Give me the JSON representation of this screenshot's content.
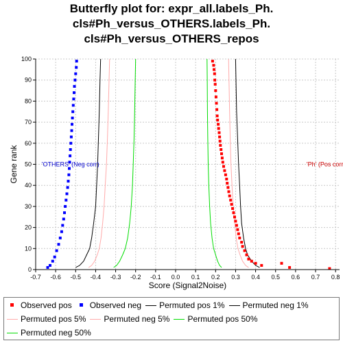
{
  "title_lines": [
    "Butterfly plot for: expr_all.labels_Ph.",
    "cls#Ph_versus_OTHERS.labels_Ph.",
    "cls#Ph_versus_OTHERS_repos"
  ],
  "chart_data": {
    "type": "scatter",
    "xlabel": "Score (Signal2Noise)",
    "ylabel": "Gene rank",
    "xlim": [
      -0.7,
      0.82
    ],
    "ylim": [
      0,
      100
    ],
    "xticks": [
      "-0.7",
      "-0.6",
      "-0.5",
      "-0.4",
      "-0.3",
      "-0.2",
      "-0.1",
      "0.0",
      "0.1",
      "0.2",
      "0.3",
      "0.4",
      "0.5",
      "0.6",
      "0.7",
      "0.8"
    ],
    "yticks": [
      "0",
      "10",
      "20",
      "30",
      "40",
      "50",
      "60",
      "70",
      "80",
      "90",
      "100"
    ],
    "grid": true,
    "annotations": [
      {
        "text": "'OTHERS' (Neg corr)",
        "x": -0.67,
        "y": 50,
        "color": "#0000cc"
      },
      {
        "text": "'Ph' (Pos corr)",
        "x": 0.655,
        "y": 50,
        "color": "#cc0000"
      }
    ],
    "series": [
      {
        "name": "Observed pos",
        "style": "points",
        "color": "#ff0000",
        "points": [
          [
            0.185,
            99
          ],
          [
            0.19,
            97
          ],
          [
            0.192,
            95
          ],
          [
            0.195,
            93
          ],
          [
            0.196,
            90
          ],
          [
            0.198,
            88
          ],
          [
            0.2,
            85
          ],
          [
            0.202,
            82
          ],
          [
            0.204,
            79
          ],
          [
            0.206,
            76
          ],
          [
            0.208,
            73
          ],
          [
            0.21,
            71
          ],
          [
            0.213,
            69
          ],
          [
            0.215,
            67
          ],
          [
            0.218,
            65
          ],
          [
            0.22,
            63
          ],
          [
            0.222,
            61
          ],
          [
            0.224,
            59
          ],
          [
            0.227,
            57
          ],
          [
            0.23,
            55
          ],
          [
            0.233,
            53
          ],
          [
            0.236,
            51
          ],
          [
            0.24,
            49
          ],
          [
            0.245,
            47
          ],
          [
            0.25,
            45
          ],
          [
            0.255,
            43
          ],
          [
            0.258,
            41
          ],
          [
            0.262,
            39
          ],
          [
            0.266,
            37
          ],
          [
            0.27,
            35
          ],
          [
            0.275,
            33
          ],
          [
            0.28,
            31
          ],
          [
            0.285,
            29
          ],
          [
            0.29,
            27
          ],
          [
            0.295,
            25
          ],
          [
            0.3,
            23
          ],
          [
            0.305,
            21
          ],
          [
            0.31,
            19
          ],
          [
            0.315,
            17
          ],
          [
            0.32,
            15
          ],
          [
            0.33,
            13
          ],
          [
            0.335,
            11
          ],
          [
            0.345,
            9
          ],
          [
            0.355,
            7
          ],
          [
            0.365,
            5
          ],
          [
            0.38,
            4
          ],
          [
            0.4,
            3
          ],
          [
            0.43,
            2
          ],
          [
            0.53,
            3
          ],
          [
            0.57,
            1
          ],
          [
            0.77,
            0.5
          ]
        ]
      },
      {
        "name": "Observed neg",
        "style": "points",
        "color": "#0000ff",
        "points": [
          [
            -0.495,
            99
          ],
          [
            -0.497,
            96
          ],
          [
            -0.5,
            93
          ],
          [
            -0.503,
            90
          ],
          [
            -0.506,
            87
          ],
          [
            -0.508,
            84
          ],
          [
            -0.51,
            81
          ],
          [
            -0.512,
            78
          ],
          [
            -0.514,
            75
          ],
          [
            -0.516,
            72
          ],
          [
            -0.518,
            69
          ],
          [
            -0.52,
            66
          ],
          [
            -0.522,
            63
          ],
          [
            -0.524,
            60
          ],
          [
            -0.526,
            57
          ],
          [
            -0.528,
            54
          ],
          [
            -0.53,
            51
          ],
          [
            -0.532,
            48
          ],
          [
            -0.534,
            45
          ],
          [
            -0.537,
            42
          ],
          [
            -0.54,
            39
          ],
          [
            -0.544,
            36
          ],
          [
            -0.548,
            33
          ],
          [
            -0.552,
            30
          ],
          [
            -0.556,
            27
          ],
          [
            -0.56,
            24
          ],
          [
            -0.565,
            21
          ],
          [
            -0.57,
            18
          ],
          [
            -0.577,
            15
          ],
          [
            -0.585,
            12
          ],
          [
            -0.595,
            9
          ],
          [
            -0.605,
            6
          ],
          [
            -0.615,
            4
          ],
          [
            -0.628,
            2
          ],
          [
            -0.64,
            1
          ]
        ]
      },
      {
        "name": "Permuted pos 1%",
        "style": "line",
        "color": "#000000",
        "points": [
          [
            0.3,
            100
          ],
          [
            0.302,
            90
          ],
          [
            0.305,
            75
          ],
          [
            0.31,
            62
          ],
          [
            0.315,
            50
          ],
          [
            0.32,
            40
          ],
          [
            0.325,
            30
          ],
          [
            0.33,
            22
          ],
          [
            0.34,
            15
          ],
          [
            0.35,
            10
          ],
          [
            0.36,
            7
          ],
          [
            0.38,
            4
          ],
          [
            0.4,
            2
          ],
          [
            0.42,
            1
          ]
        ]
      },
      {
        "name": "Permuted neg 1%",
        "style": "line",
        "color": "#000000",
        "points": [
          [
            -0.375,
            100
          ],
          [
            -0.378,
            90
          ],
          [
            -0.382,
            75
          ],
          [
            -0.386,
            62
          ],
          [
            -0.39,
            50
          ],
          [
            -0.395,
            40
          ],
          [
            -0.4,
            30
          ],
          [
            -0.41,
            22
          ],
          [
            -0.42,
            15
          ],
          [
            -0.43,
            10
          ],
          [
            -0.445,
            7
          ],
          [
            -0.46,
            4
          ],
          [
            -0.48,
            2
          ],
          [
            -0.5,
            1
          ]
        ]
      },
      {
        "name": "Permuted pos 5%",
        "style": "line",
        "color": "#ffaaaa",
        "points": [
          [
            0.265,
            100
          ],
          [
            0.267,
            90
          ],
          [
            0.27,
            75
          ],
          [
            0.273,
            62
          ],
          [
            0.277,
            50
          ],
          [
            0.282,
            40
          ],
          [
            0.288,
            30
          ],
          [
            0.295,
            22
          ],
          [
            0.303,
            15
          ],
          [
            0.312,
            10
          ],
          [
            0.322,
            7
          ],
          [
            0.335,
            4
          ],
          [
            0.35,
            2
          ],
          [
            0.365,
            1
          ]
        ]
      },
      {
        "name": "Permuted neg 5%",
        "style": "line",
        "color": "#ffaaaa",
        "points": [
          [
            -0.33,
            100
          ],
          [
            -0.333,
            90
          ],
          [
            -0.337,
            75
          ],
          [
            -0.341,
            62
          ],
          [
            -0.346,
            50
          ],
          [
            -0.352,
            40
          ],
          [
            -0.358,
            30
          ],
          [
            -0.365,
            22
          ],
          [
            -0.373,
            15
          ],
          [
            -0.382,
            10
          ],
          [
            -0.392,
            7
          ],
          [
            -0.405,
            4
          ],
          [
            -0.42,
            2
          ],
          [
            -0.435,
            1
          ]
        ]
      },
      {
        "name": "Permuted pos 50%",
        "style": "line",
        "color": "#00dd00",
        "points": [
          [
            0.157,
            100
          ],
          [
            0.158,
            90
          ],
          [
            0.159,
            75
          ],
          [
            0.161,
            62
          ],
          [
            0.163,
            50
          ],
          [
            0.166,
            40
          ],
          [
            0.17,
            30
          ],
          [
            0.175,
            22
          ],
          [
            0.182,
            15
          ],
          [
            0.19,
            10
          ],
          [
            0.2,
            7
          ],
          [
            0.21,
            4
          ],
          [
            0.22,
            2
          ],
          [
            0.23,
            1
          ]
        ]
      },
      {
        "name": "Permuted neg 50%",
        "style": "line",
        "color": "#00dd00",
        "points": [
          [
            -0.2,
            100
          ],
          [
            -0.202,
            90
          ],
          [
            -0.205,
            75
          ],
          [
            -0.208,
            62
          ],
          [
            -0.212,
            50
          ],
          [
            -0.216,
            40
          ],
          [
            -0.222,
            30
          ],
          [
            -0.23,
            22
          ],
          [
            -0.24,
            15
          ],
          [
            -0.252,
            10
          ],
          [
            -0.265,
            7
          ],
          [
            -0.28,
            4
          ],
          [
            -0.295,
            2
          ],
          [
            -0.31,
            1
          ]
        ]
      }
    ]
  },
  "legend": {
    "rows": [
      [
        {
          "label": "Observed pos",
          "kind": "dot",
          "color": "#ff0000"
        },
        {
          "label": "Observed neg",
          "kind": "dot",
          "color": "#0000ff"
        },
        {
          "label": "Permuted pos 1%",
          "kind": "line",
          "color": "#000000"
        },
        {
          "label": "Permuted neg 1%",
          "kind": "line",
          "color": "#000000"
        }
      ],
      [
        {
          "label": "Permuted pos 5%",
          "kind": "line",
          "color": "#ffaaaa"
        },
        {
          "label": "Permuted neg 5%",
          "kind": "line",
          "color": "#ffaaaa"
        },
        {
          "label": "Permuted pos 50%",
          "kind": "line",
          "color": "#00dd00"
        }
      ],
      [
        {
          "label": "Permuted neg 50%",
          "kind": "line",
          "color": "#00dd00"
        }
      ]
    ]
  }
}
